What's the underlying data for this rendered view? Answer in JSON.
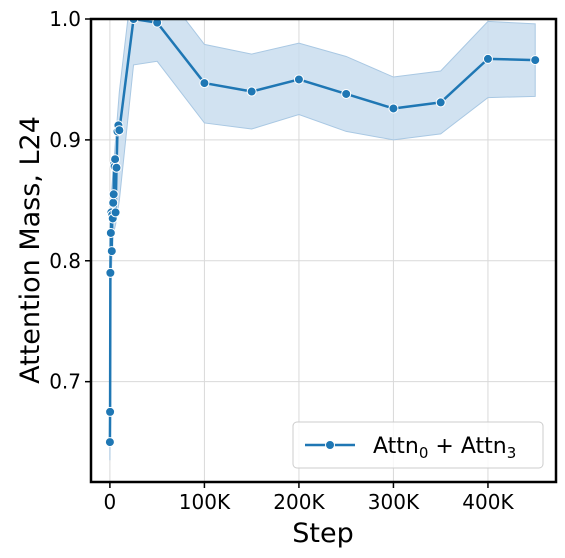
{
  "chart_data": {
    "type": "line",
    "xlabel": "Step",
    "ylabel": "Attention Mass, L24",
    "xlim": [
      -20000,
      472000
    ],
    "ylim": [
      0.617,
      1.0
    ],
    "x_ticks": [
      0,
      100000,
      200000,
      300000,
      400000
    ],
    "x_tick_labels": [
      "0",
      "100K",
      "200K",
      "300K",
      "400K"
    ],
    "y_ticks": [
      0.7,
      0.8,
      0.9,
      1.0
    ],
    "y_tick_labels": [
      "0.7",
      "0.8",
      "0.9",
      "1.0"
    ],
    "grid": true,
    "legend_position": "lower-right",
    "series": [
      {
        "name_main": "Attn",
        "name_sub1": "0",
        "name_plus": " + Attn",
        "name_sub2": "3",
        "color": "#1f77b4",
        "band_color": "#c6dbed",
        "x": [
          0,
          200,
          500,
          1000,
          1500,
          2000,
          2500,
          3000,
          3500,
          4000,
          4500,
          5000,
          5500,
          6000,
          7000,
          8000,
          9000,
          10000,
          25000,
          50000,
          100000,
          150000,
          200000,
          250000,
          300000,
          350000,
          400000,
          450000
        ],
        "y": [
          0.65,
          0.675,
          0.79,
          0.823,
          0.84,
          0.808,
          0.838,
          0.835,
          0.848,
          0.855,
          0.88,
          0.878,
          0.884,
          0.84,
          0.877,
          0.907,
          0.912,
          0.908,
          1.0,
          0.997,
          0.947,
          0.94,
          0.95,
          0.938,
          0.926,
          0.931,
          0.967,
          0.966
        ],
        "band_x": [
          0,
          1000,
          3000,
          6000,
          10000,
          25000,
          50000,
          100000,
          150000,
          200000,
          250000,
          300000,
          350000,
          400000,
          450000
        ],
        "band_low": [
          0.635,
          0.78,
          0.82,
          0.83,
          0.85,
          0.962,
          0.965,
          0.914,
          0.909,
          0.921,
          0.907,
          0.9,
          0.905,
          0.935,
          0.936
        ],
        "band_high": [
          0.665,
          0.85,
          0.87,
          0.9,
          0.94,
          1.04,
          1.03,
          0.979,
          0.971,
          0.98,
          0.969,
          0.952,
          0.957,
          0.998,
          0.996
        ]
      }
    ]
  }
}
